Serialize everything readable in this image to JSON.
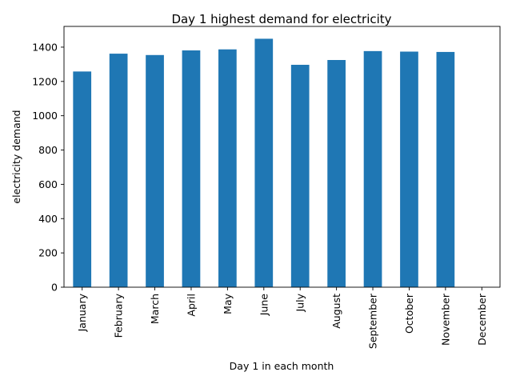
{
  "chart_data": {
    "type": "bar",
    "title": "Day 1 highest demand for electricity",
    "xlabel": "Day 1 in each month",
    "ylabel": "electricity demand",
    "categories": [
      "January",
      "February",
      "March",
      "April",
      "May",
      "June",
      "July",
      "August",
      "September",
      "October",
      "November",
      "December"
    ],
    "values": [
      1258,
      1362,
      1354,
      1381,
      1387,
      1449,
      1297,
      1325,
      1377,
      1374,
      1372,
      0
    ],
    "ylim": [
      0,
      1521
    ],
    "yticks": [
      0,
      200,
      400,
      600,
      800,
      1000,
      1200,
      1400
    ],
    "bar_color": "#1f77b4",
    "grid": false,
    "legend": "none"
  }
}
